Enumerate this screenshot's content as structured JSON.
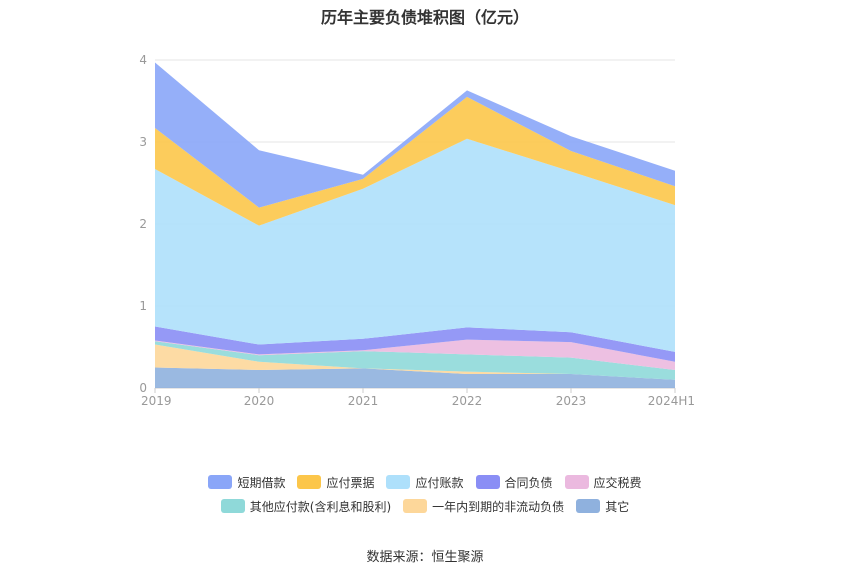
{
  "page": {
    "title": "历年主要负债堆积图（亿元）",
    "source": "数据来源：恒生聚源"
  },
  "chart_data": {
    "type": "area",
    "stacked": true,
    "title": "历年主要负债堆积图（亿元）",
    "x": [
      "2019",
      "2020",
      "2021",
      "2022",
      "2023",
      "2024H1"
    ],
    "ylim": [
      0,
      4
    ],
    "yticks": [
      0,
      1,
      2,
      3,
      4
    ],
    "grid": true,
    "legend_position": "bottom",
    "series": [
      {
        "name": "其它",
        "color": "#8fb1de",
        "values": [
          0.25,
          0.22,
          0.24,
          0.17,
          0.17,
          0.1
        ]
      },
      {
        "name": "一年内到期的非流动负债",
        "color": "#fdd79a",
        "values": [
          0.28,
          0.1,
          0.0,
          0.03,
          0.0,
          0.0
        ]
      },
      {
        "name": "其他应付款(含利息和股利)",
        "color": "#8fd9d9",
        "values": [
          0.04,
          0.08,
          0.21,
          0.21,
          0.2,
          0.12
        ]
      },
      {
        "name": "应交税费",
        "color": "#ebb9df",
        "values": [
          0.01,
          0.01,
          0.01,
          0.18,
          0.19,
          0.1
        ]
      },
      {
        "name": "合同负债",
        "color": "#8a8ef5",
        "values": [
          0.17,
          0.12,
          0.14,
          0.15,
          0.12,
          0.12
        ]
      },
      {
        "name": "应付账款",
        "color": "#aee0fb",
        "values": [
          1.92,
          1.45,
          1.83,
          2.3,
          1.96,
          1.79
        ]
      },
      {
        "name": "应付票据",
        "color": "#fcc64a",
        "values": [
          0.5,
          0.22,
          0.12,
          0.51,
          0.25,
          0.23
        ]
      },
      {
        "name": "短期借款",
        "color": "#8aa6f8",
        "values": [
          0.8,
          0.7,
          0.05,
          0.08,
          0.18,
          0.19
        ]
      }
    ]
  },
  "legend": {
    "rows": [
      [
        {
          "name": "短期借款",
          "color": "#8aa6f8"
        },
        {
          "name": "应付票据",
          "color": "#fcc64a"
        },
        {
          "name": "应付账款",
          "color": "#aee0fb"
        },
        {
          "name": "合同负债",
          "color": "#8a8ef5"
        },
        {
          "name": "应交税费",
          "color": "#ebb9df"
        }
      ],
      [
        {
          "name": "其他应付款(含利息和股利)",
          "color": "#8fd9d9"
        },
        {
          "name": "一年内到期的非流动负债",
          "color": "#fdd79a"
        },
        {
          "name": "其它",
          "color": "#8fb1de"
        }
      ]
    ]
  }
}
